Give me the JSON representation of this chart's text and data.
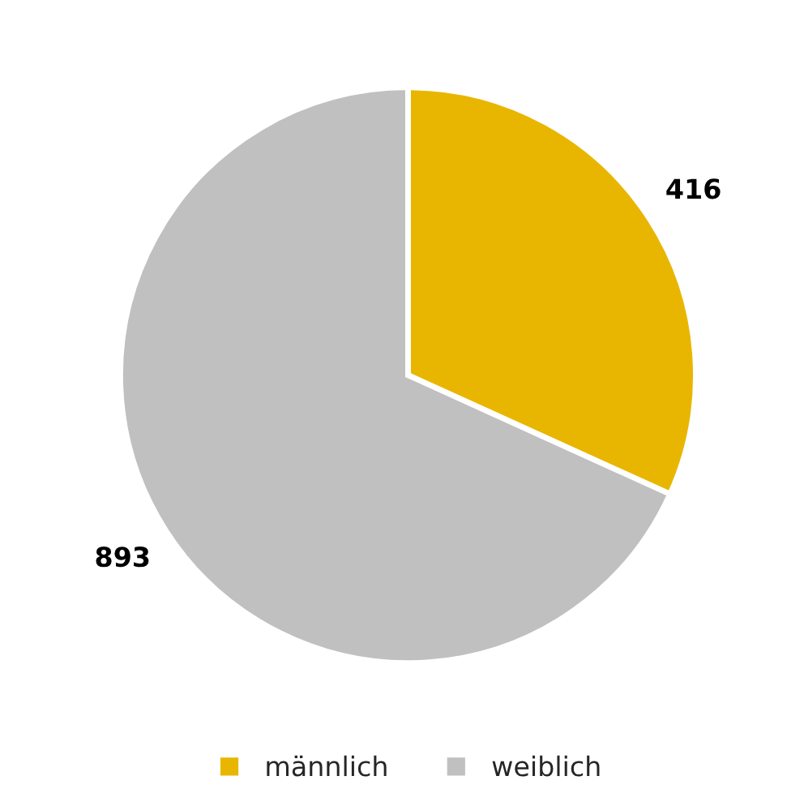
{
  "chart_data": {
    "type": "pie",
    "categories": [
      "männlich",
      "weiblich"
    ],
    "values": [
      416,
      893
    ],
    "colors": [
      "#e8b600",
      "#c0c0c0"
    ],
    "data_labels": true,
    "legend": "bottom"
  }
}
